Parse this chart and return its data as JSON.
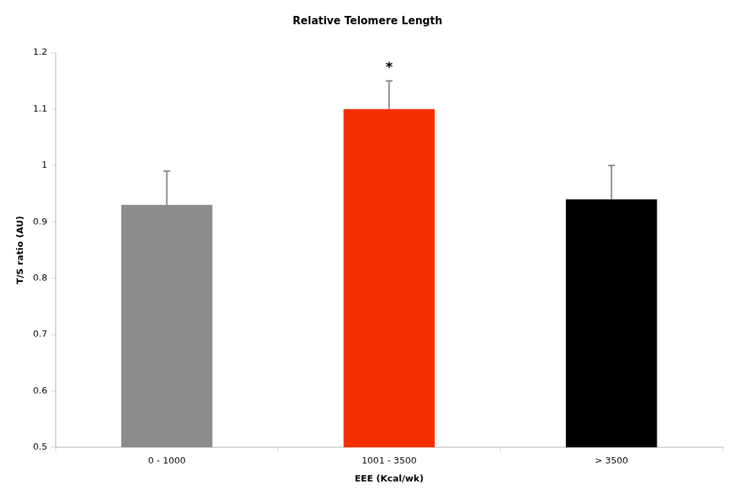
{
  "chart_data": {
    "type": "bar",
    "title": "Relative Telomere Length",
    "xlabel": "EEE (Kcal/wk)",
    "ylabel": "T/S ratio (AU)",
    "categories": [
      "0 - 1000",
      "1001 - 3500",
      "> 3500"
    ],
    "values": [
      0.93,
      1.1,
      0.94
    ],
    "colors": [
      "#8c8c8c",
      "#f52f00",
      "#000000"
    ],
    "errors": [
      [
        0.93,
        0.99
      ],
      [
        1.1,
        1.15
      ],
      [
        0.94,
        1.0
      ]
    ],
    "ylim": [
      0.5,
      1.2
    ],
    "yticks": [
      0.5,
      0.6,
      0.7,
      0.8,
      0.9,
      1,
      1.1,
      1.2
    ],
    "annotations": [
      "*"
    ],
    "grid": false,
    "legend": false
  }
}
